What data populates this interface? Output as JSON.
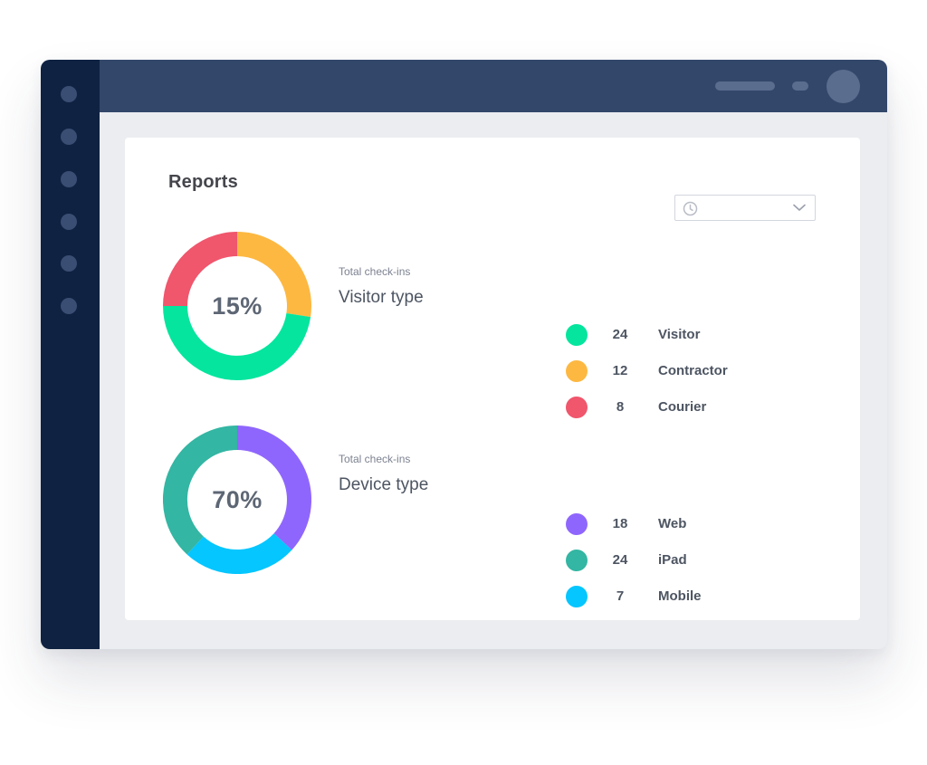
{
  "page": {
    "title": "Reports"
  },
  "colors": {
    "sidebar": "#0f2242",
    "topbar": "#33476a",
    "visitor": "#05e59e",
    "contractor": "#fdb842",
    "courier": "#f0566c",
    "web": "#8f66fd",
    "ipad": "#33b6a3",
    "mobile": "#05c6ff"
  },
  "date_filter": {
    "icon": "clock-icon",
    "dropdown_icon": "chevron-down-icon",
    "value": ""
  },
  "sections": [
    {
      "subtitle": "Total check-ins",
      "title": "Visitor type",
      "percent": "15%",
      "legend": [
        {
          "count": "24",
          "label": "Visitor",
          "color": "#05e59e"
        },
        {
          "count": "12",
          "label": "Contractor",
          "color": "#fdb842"
        },
        {
          "count": "8",
          "label": "Courier",
          "color": "#f0566c"
        }
      ]
    },
    {
      "subtitle": "Total check-ins",
      "title": "Device type",
      "percent": "70%",
      "legend": [
        {
          "count": "18",
          "label": "Web",
          "color": "#8f66fd"
        },
        {
          "count": "24",
          "label": "iPad",
          "color": "#33b6a3"
        },
        {
          "count": "7",
          "label": "Mobile",
          "color": "#05c6ff"
        }
      ]
    }
  ]
}
